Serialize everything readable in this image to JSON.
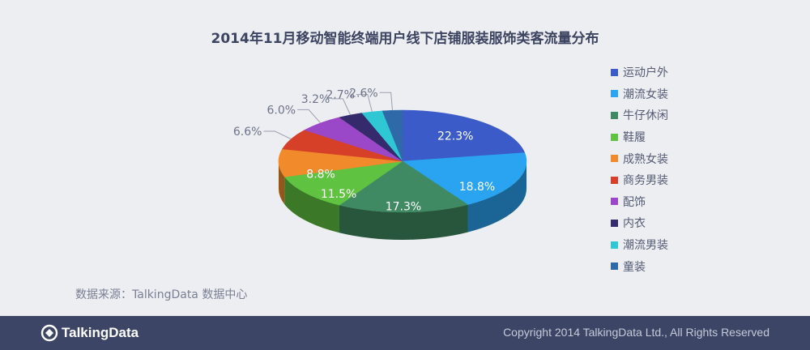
{
  "chart_data": {
    "type": "pie",
    "title": "2014年11月移动智能终端用户线下店铺服装服饰类客流量分布",
    "categories": [
      "运动户外",
      "潮流女装",
      "牛仔休闲",
      "鞋履",
      "成熟女装",
      "商务男装",
      "配饰",
      "内衣",
      "潮流男装",
      "童装"
    ],
    "values": [
      22.3,
      18.8,
      17.3,
      11.5,
      8.8,
      6.6,
      6.0,
      3.2,
      2.7,
      2.6
    ],
    "labels": [
      "22.3%",
      "18.8%",
      "17.3%",
      "11.5%",
      "8.8%",
      "6.6%",
      "6.0%",
      "3.2%",
      "2.7%",
      "2.6%"
    ],
    "colors": [
      "#3b5bc9",
      "#2aa3f0",
      "#3f8a63",
      "#5fc241",
      "#f08a2a",
      "#d64029",
      "#9a47c8",
      "#342a6c",
      "#2fc7d4",
      "#2e6aa8"
    ],
    "legend_position": "right",
    "style": "3d"
  },
  "source": "数据来源：TalkingData 数据中心",
  "footer": {
    "brand": "TalkingData",
    "copyright": "Copyright 2014 TalkingData Ltd., All Rights Reserved"
  }
}
